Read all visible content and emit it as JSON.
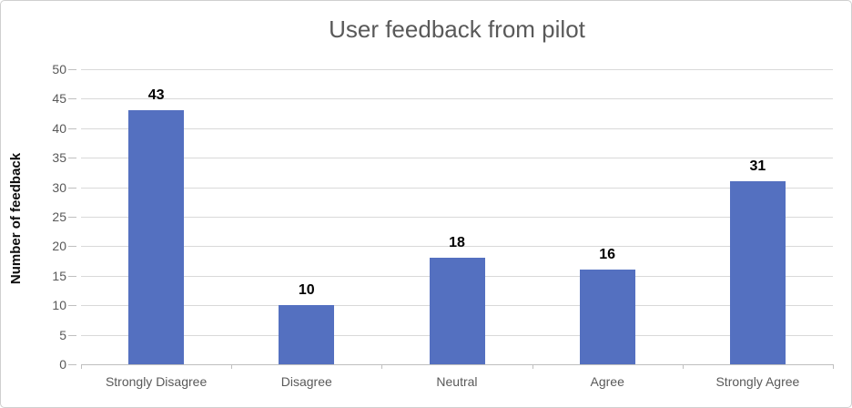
{
  "chart_data": {
    "type": "bar",
    "title": "User feedback from pilot",
    "categories": [
      "Strongly Disagree",
      "Disagree",
      "Neutral",
      "Agree",
      "Strongly Agree"
    ],
    "values": [
      43,
      10,
      18,
      16,
      31
    ],
    "xlabel": "",
    "ylabel": "Number of feedback",
    "ylim": [
      0,
      50
    ],
    "yticks": [
      0,
      5,
      10,
      15,
      20,
      25,
      30,
      35,
      40,
      45,
      50
    ],
    "grid": "horizontal",
    "legend_position": "none",
    "data_labels_shown": true,
    "colors": {
      "bar_fill": "#5470c0",
      "title_text": "#595959",
      "axis_tick_text": "#595959",
      "gridline": "#d9d9d9",
      "axis_line": "#bfbfbf",
      "value_label_text": "#000000",
      "y_axis_title_text": "#0d0d0d",
      "chart_border": "#cfcfcf",
      "background": "#ffffff"
    }
  }
}
